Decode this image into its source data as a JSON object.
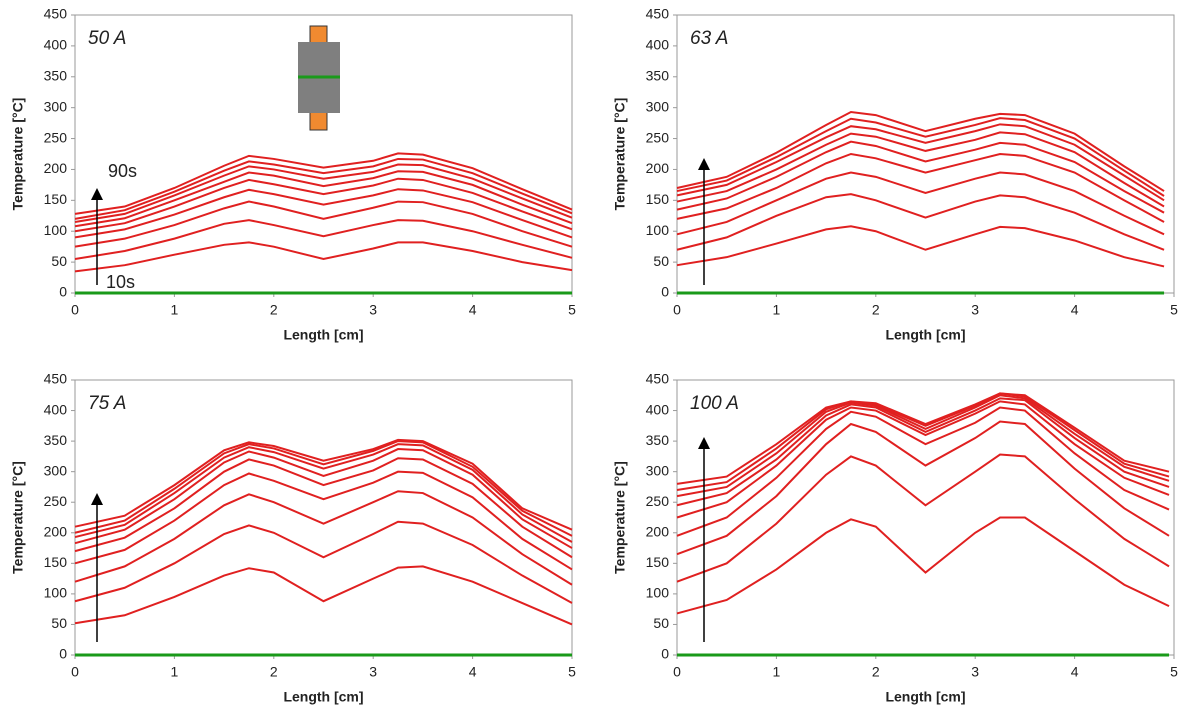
{
  "chart_data": [
    {
      "type": "line",
      "annotations": [
        "50 A",
        "90s",
        "10s"
      ],
      "xlabel": "Length [cm]",
      "ylabel": "Temperature [°C]",
      "xlim": [
        0,
        5
      ],
      "ylim": [
        0,
        450
      ],
      "xticks": [
        0,
        1,
        2,
        3,
        4,
        5
      ],
      "yticks": [
        0,
        50,
        100,
        150,
        200,
        250,
        300,
        350,
        400,
        450
      ],
      "x": [
        0,
        0.5,
        1,
        1.5,
        1.75,
        2,
        2.5,
        3,
        3.25,
        3.5,
        4,
        4.5,
        5
      ],
      "series": [
        {
          "color": "#e02020",
          "values": [
            35,
            45,
            62,
            78,
            82,
            75,
            55,
            72,
            82,
            82,
            68,
            50,
            37
          ]
        },
        {
          "color": "#e02020",
          "values": [
            55,
            68,
            88,
            112,
            118,
            110,
            92,
            110,
            118,
            117,
            100,
            78,
            57
          ]
        },
        {
          "color": "#e02020",
          "values": [
            75,
            88,
            110,
            137,
            148,
            140,
            120,
            138,
            148,
            147,
            128,
            100,
            75
          ]
        },
        {
          "color": "#e02020",
          "values": [
            90,
            103,
            127,
            155,
            167,
            160,
            143,
            158,
            168,
            166,
            147,
            118,
            90
          ]
        },
        {
          "color": "#e02020",
          "values": [
            100,
            113,
            140,
            170,
            183,
            176,
            160,
            174,
            185,
            183,
            162,
            132,
            103
          ]
        },
        {
          "color": "#e02020",
          "values": [
            108,
            121,
            150,
            180,
            195,
            190,
            173,
            186,
            197,
            196,
            175,
            143,
            113
          ]
        },
        {
          "color": "#e02020",
          "values": [
            115,
            128,
            158,
            190,
            205,
            200,
            185,
            196,
            208,
            207,
            185,
            153,
            122
          ]
        },
        {
          "color": "#e02020",
          "values": [
            120,
            134,
            164,
            198,
            213,
            208,
            194,
            205,
            217,
            216,
            194,
            161,
            129
          ]
        },
        {
          "color": "#e02020",
          "values": [
            128,
            140,
            170,
            206,
            222,
            217,
            203,
            214,
            226,
            224,
            202,
            168,
            135
          ]
        },
        {
          "color": "#1a9a1a",
          "values": [
            0,
            0,
            0,
            0,
            0,
            0,
            0,
            0,
            0,
            0,
            0,
            0,
            0
          ]
        }
      ]
    },
    {
      "type": "line",
      "annotations": [
        "63 A"
      ],
      "xlabel": "Length [cm]",
      "ylabel": "Temperature [°C]",
      "xlim": [
        0,
        5
      ],
      "ylim": [
        0,
        450
      ],
      "xticks": [
        0,
        1,
        2,
        3,
        4,
        5
      ],
      "yticks": [
        0,
        50,
        100,
        150,
        200,
        250,
        300,
        350,
        400,
        450
      ],
      "x": [
        0,
        0.5,
        1,
        1.5,
        1.75,
        2,
        2.5,
        3,
        3.25,
        3.5,
        4,
        4.5,
        4.9
      ],
      "series": [
        {
          "color": "#e02020",
          "values": [
            45,
            58,
            80,
            103,
            108,
            100,
            70,
            95,
            107,
            105,
            85,
            58,
            43
          ]
        },
        {
          "color": "#e02020",
          "values": [
            70,
            90,
            125,
            155,
            160,
            150,
            122,
            148,
            158,
            155,
            130,
            95,
            70
          ]
        },
        {
          "color": "#e02020",
          "values": [
            95,
            115,
            150,
            185,
            195,
            188,
            162,
            185,
            195,
            192,
            165,
            125,
            95
          ]
        },
        {
          "color": "#e02020",
          "values": [
            120,
            137,
            170,
            210,
            225,
            218,
            195,
            215,
            225,
            222,
            195,
            150,
            115
          ]
        },
        {
          "color": "#e02020",
          "values": [
            135,
            153,
            188,
            228,
            245,
            238,
            213,
            232,
            243,
            240,
            212,
            165,
            130
          ]
        },
        {
          "color": "#e02020",
          "values": [
            148,
            165,
            200,
            240,
            258,
            253,
            230,
            248,
            260,
            257,
            228,
            178,
            140
          ]
        },
        {
          "color": "#e02020",
          "values": [
            158,
            175,
            212,
            252,
            270,
            265,
            243,
            262,
            273,
            270,
            240,
            190,
            150
          ]
        },
        {
          "color": "#e02020",
          "values": [
            165,
            182,
            220,
            262,
            282,
            276,
            253,
            272,
            283,
            280,
            250,
            198,
            157
          ]
        },
        {
          "color": "#e02020",
          "values": [
            170,
            188,
            227,
            272,
            293,
            288,
            262,
            282,
            290,
            288,
            258,
            205,
            165
          ]
        },
        {
          "color": "#1a9a1a",
          "values": [
            0,
            0,
            0,
            0,
            0,
            0,
            0,
            0,
            0,
            0,
            0,
            0,
            0
          ]
        }
      ]
    },
    {
      "type": "line",
      "annotations": [
        "75 A"
      ],
      "xlabel": "Length [cm]",
      "ylabel": "Temperature [°C]",
      "xlim": [
        0,
        5
      ],
      "ylim": [
        0,
        450
      ],
      "xticks": [
        0,
        1,
        2,
        3,
        4,
        5
      ],
      "yticks": [
        0,
        50,
        100,
        150,
        200,
        250,
        300,
        350,
        400,
        450
      ],
      "x": [
        0,
        0.5,
        1,
        1.5,
        1.75,
        2,
        2.5,
        3,
        3.25,
        3.5,
        4,
        4.5,
        5
      ],
      "series": [
        {
          "color": "#e02020",
          "values": [
            52,
            65,
            95,
            130,
            142,
            135,
            88,
            125,
            143,
            145,
            120,
            85,
            50
          ]
        },
        {
          "color": "#e02020",
          "values": [
            88,
            110,
            150,
            198,
            212,
            200,
            160,
            198,
            218,
            215,
            180,
            130,
            85
          ]
        },
        {
          "color": "#e02020",
          "values": [
            120,
            145,
            190,
            245,
            263,
            250,
            215,
            250,
            268,
            265,
            225,
            165,
            115
          ]
        },
        {
          "color": "#e02020",
          "values": [
            150,
            172,
            220,
            278,
            297,
            285,
            255,
            282,
            300,
            298,
            258,
            190,
            140
          ]
        },
        {
          "color": "#e02020",
          "values": [
            170,
            192,
            240,
            300,
            320,
            310,
            278,
            302,
            322,
            320,
            280,
            210,
            160
          ]
        },
        {
          "color": "#e02020",
          "values": [
            183,
            205,
            255,
            315,
            333,
            323,
            293,
            318,
            337,
            335,
            295,
            222,
            175
          ]
        },
        {
          "color": "#e02020",
          "values": [
            193,
            213,
            265,
            323,
            340,
            332,
            305,
            328,
            345,
            343,
            303,
            230,
            185
          ]
        },
        {
          "color": "#e02020",
          "values": [
            200,
            220,
            272,
            330,
            345,
            338,
            312,
            334,
            350,
            348,
            308,
            236,
            195
          ]
        },
        {
          "color": "#e02020",
          "values": [
            210,
            228,
            278,
            335,
            348,
            342,
            318,
            337,
            352,
            350,
            313,
            240,
            205
          ]
        },
        {
          "color": "#1a9a1a",
          "values": [
            0,
            0,
            0,
            0,
            0,
            0,
            0,
            0,
            0,
            0,
            0,
            0,
            0
          ]
        }
      ]
    },
    {
      "type": "line",
      "annotations": [
        "100 A"
      ],
      "xlabel": "Length [cm]",
      "ylabel": "Temperature [°C]",
      "xlim": [
        0,
        5
      ],
      "ylim": [
        0,
        450
      ],
      "xticks": [
        0,
        1,
        2,
        3,
        4,
        5
      ],
      "yticks": [
        0,
        50,
        100,
        150,
        200,
        250,
        300,
        350,
        400,
        450
      ],
      "x": [
        0,
        0.5,
        1,
        1.5,
        1.75,
        2,
        2.5,
        3,
        3.25,
        3.5,
        4,
        4.5,
        4.95
      ],
      "series": [
        {
          "color": "#e02020",
          "values": [
            68,
            90,
            140,
            200,
            222,
            210,
            135,
            200,
            225,
            225,
            170,
            115,
            80
          ]
        },
        {
          "color": "#e02020",
          "values": [
            120,
            150,
            215,
            295,
            325,
            310,
            245,
            300,
            328,
            325,
            255,
            190,
            145
          ]
        },
        {
          "color": "#e02020",
          "values": [
            165,
            195,
            260,
            345,
            378,
            365,
            310,
            355,
            382,
            378,
            305,
            240,
            195
          ]
        },
        {
          "color": "#e02020",
          "values": [
            195,
            225,
            290,
            370,
            398,
            390,
            345,
            380,
            405,
            400,
            330,
            270,
            238
          ]
        },
        {
          "color": "#e02020",
          "values": [
            225,
            250,
            310,
            385,
            405,
            400,
            360,
            395,
            415,
            410,
            345,
            290,
            262
          ]
        },
        {
          "color": "#e02020",
          "values": [
            245,
            265,
            320,
            392,
            410,
            405,
            365,
            400,
            420,
            417,
            355,
            300,
            275
          ]
        },
        {
          "color": "#e02020",
          "values": [
            260,
            275,
            330,
            398,
            413,
            408,
            370,
            405,
            425,
            420,
            362,
            308,
            285
          ]
        },
        {
          "color": "#e02020",
          "values": [
            270,
            283,
            338,
            402,
            415,
            410,
            375,
            408,
            428,
            423,
            368,
            313,
            292
          ]
        },
        {
          "color": "#e02020",
          "values": [
            280,
            292,
            345,
            405,
            415,
            412,
            378,
            410,
            428,
            425,
            372,
            318,
            300
          ]
        },
        {
          "color": "#1a9a1a",
          "values": [
            0,
            0,
            0,
            0,
            0,
            0,
            0,
            0,
            0,
            0,
            0,
            0,
            0
          ]
        }
      ]
    }
  ]
}
